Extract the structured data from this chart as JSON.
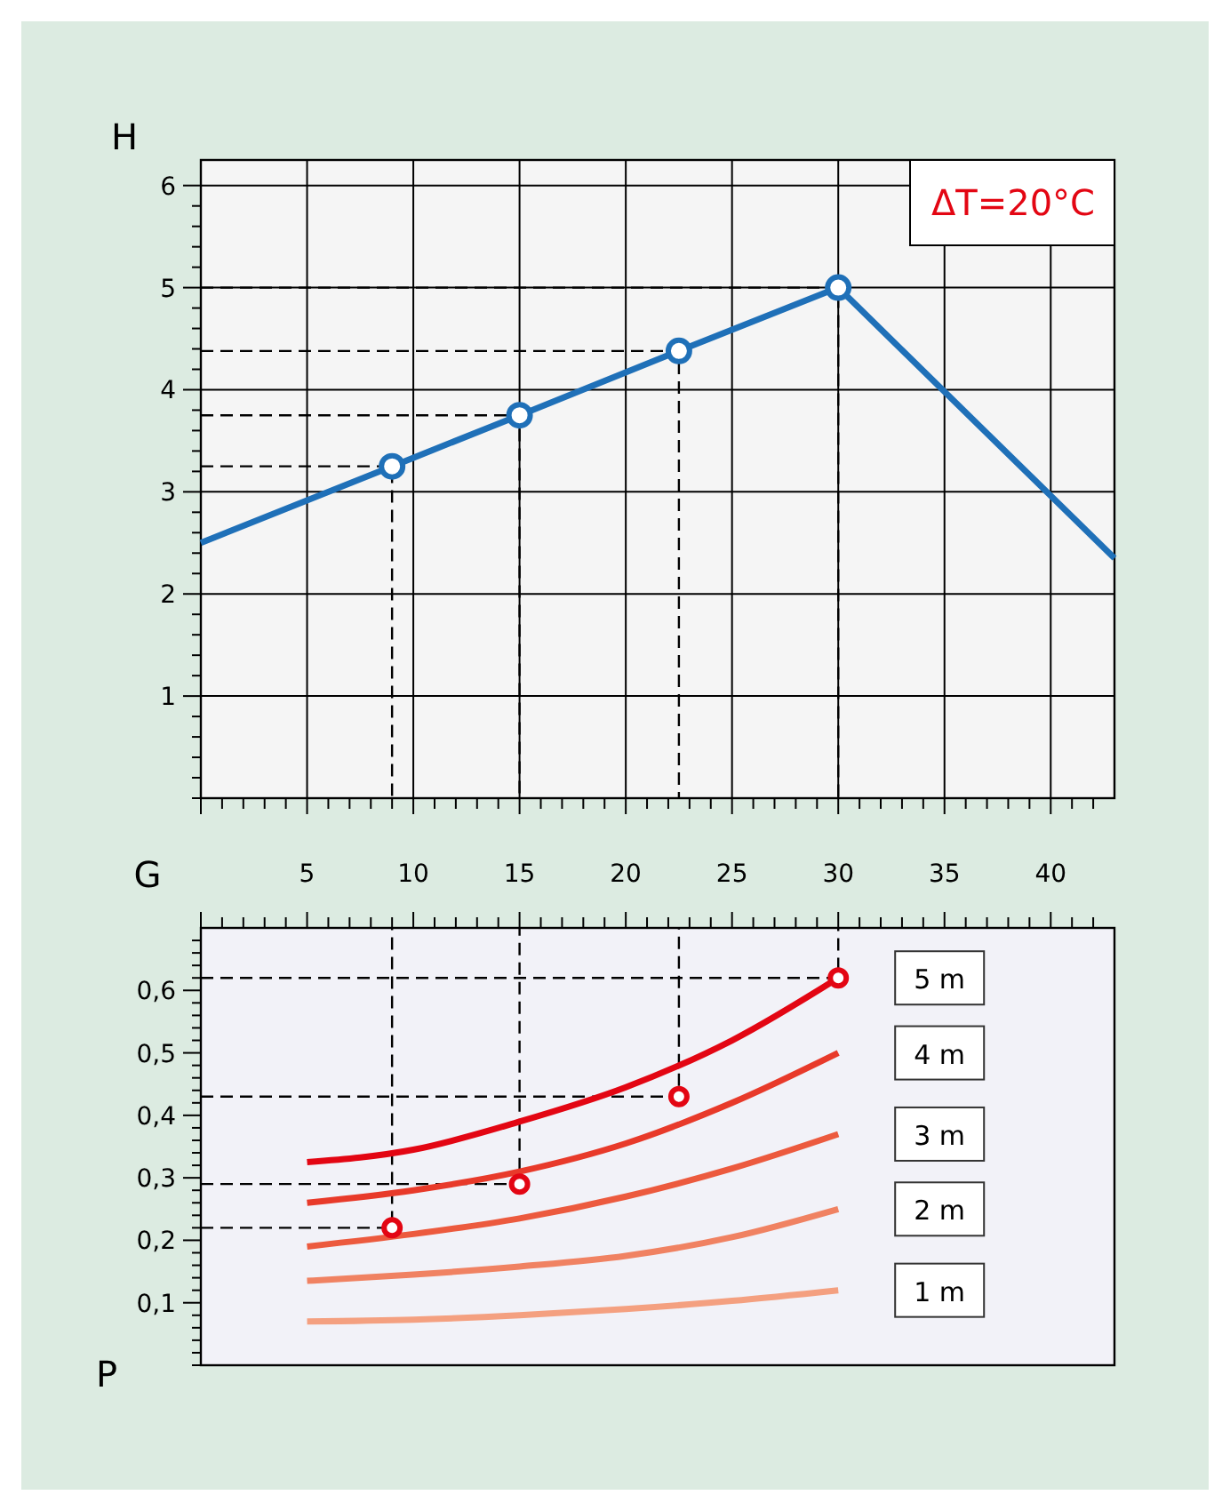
{
  "chart_data": [
    {
      "type": "line",
      "xlabel": "G",
      "ylabel": "H",
      "annotations": [
        "ΔT=20°C"
      ],
      "xlim": [
        0,
        43
      ],
      "ylim": [
        0,
        6.25
      ],
      "grid": true,
      "xticks": [
        {
          "value": 0,
          "label": null
        },
        {
          "value": 1,
          "label": null
        },
        {
          "value": 2,
          "label": null
        },
        {
          "value": 3,
          "label": null
        },
        {
          "value": 4,
          "label": null
        },
        5,
        {
          "value": 6,
          "label": null
        },
        {
          "value": 7,
          "label": null
        },
        {
          "value": 8,
          "label": null
        },
        {
          "value": 9,
          "label": null
        },
        10,
        {
          "value": 11,
          "label": null
        },
        {
          "value": 12,
          "label": null
        },
        {
          "value": 13,
          "label": null
        },
        {
          "value": 14,
          "label": null
        },
        15,
        {
          "value": 16,
          "label": null
        },
        {
          "value": 17,
          "label": null
        },
        {
          "value": 18,
          "label": null
        },
        {
          "value": 19,
          "label": null
        },
        20,
        {
          "value": 21,
          "label": null
        },
        {
          "value": 22,
          "label": null
        },
        {
          "value": 23,
          "label": null
        },
        {
          "value": 24,
          "label": null
        },
        25,
        {
          "value": 26,
          "label": null
        },
        {
          "value": 27,
          "label": null
        },
        {
          "value": 28,
          "label": null
        },
        {
          "value": 29,
          "label": null
        },
        30,
        {
          "value": 31,
          "label": null
        },
        {
          "value": 32,
          "label": null
        },
        {
          "value": 33,
          "label": null
        },
        {
          "value": 34,
          "label": null
        },
        35,
        {
          "value": 36,
          "label": null
        },
        {
          "value": 37,
          "label": null
        },
        {
          "value": 38,
          "label": null
        },
        {
          "value": 39,
          "label": null
        },
        40,
        {
          "value": 41,
          "label": null
        },
        {
          "value": 42,
          "label": null
        }
      ],
      "yticks": [
        {
          "value": 0,
          "label": null
        },
        {
          "value": 0.2,
          "label": null
        },
        {
          "value": 0.4,
          "label": null
        },
        {
          "value": 0.6,
          "label": null
        },
        {
          "value": 0.8,
          "label": null
        },
        1,
        {
          "value": 1.2,
          "label": null
        },
        {
          "value": 1.4,
          "label": null
        },
        {
          "value": 1.6,
          "label": null
        },
        {
          "value": 1.8,
          "label": null
        },
        2,
        {
          "value": 2.2,
          "label": null
        },
        {
          "value": 2.4,
          "label": null
        },
        {
          "value": 2.6,
          "label": null
        },
        {
          "value": 2.8,
          "label": null
        },
        3,
        {
          "value": 3.2,
          "label": null
        },
        {
          "value": 3.4,
          "label": null
        },
        {
          "value": 3.6,
          "label": null
        },
        {
          "value": 3.8,
          "label": null
        },
        4,
        {
          "value": 4.2,
          "label": null
        },
        {
          "value": 4.4,
          "label": null
        },
        {
          "value": 4.6,
          "label": null
        },
        {
          "value": 4.8,
          "label": null
        },
        5,
        {
          "value": 5.2,
          "label": null
        },
        {
          "value": 5.4,
          "label": null
        },
        {
          "value": 5.6,
          "label": null
        },
        {
          "value": 5.8,
          "label": null
        },
        6
      ],
      "series": [
        {
          "type": "line",
          "color": "#000000",
          "line_style": "dashed",
          "x": [
            0,
            9,
            9
          ],
          "values": [
            3.25,
            3.25,
            0
          ]
        },
        {
          "type": "line",
          "color": "#000000",
          "line_style": "dashed",
          "x": [
            0,
            15,
            15
          ],
          "values": [
            3.75,
            3.75,
            0
          ]
        },
        {
          "type": "line",
          "color": "#000000",
          "line_style": "dashed",
          "x": [
            0,
            22.5,
            22.5
          ],
          "values": [
            4.38,
            4.38,
            0
          ]
        },
        {
          "type": "line",
          "color": "#000000",
          "line_style": "dashed",
          "x": [
            0,
            30,
            30
          ],
          "values": [
            5.0,
            5.0,
            0
          ]
        },
        {
          "type": "line",
          "color": "#1f70b8",
          "x": [
            0,
            9,
            15,
            22.5,
            30,
            43
          ],
          "values": [
            2.5,
            3.25,
            3.75,
            4.38,
            5.0,
            2.35
          ]
        },
        {
          "type": "scatter",
          "color": "#1f70b8",
          "marker": "circle",
          "x": [
            9,
            15,
            22.5,
            30
          ],
          "values": [
            3.25,
            3.75,
            4.38,
            5.0
          ]
        }
      ]
    },
    {
      "type": "line",
      "ylabel": "P",
      "xlim": [
        0,
        43
      ],
      "ylim": [
        0,
        0.7
      ],
      "grid": "x",
      "tick_labels": "y",
      "xticks": [
        {
          "value": 0,
          "label": null
        },
        {
          "value": 1,
          "label": null
        },
        {
          "value": 2,
          "label": null
        },
        {
          "value": 3,
          "label": null
        },
        {
          "value": 4,
          "label": null
        },
        {
          "value": 5,
          "label": null
        },
        {
          "value": 6,
          "label": null
        },
        {
          "value": 7,
          "label": null
        },
        {
          "value": 8,
          "label": null
        },
        {
          "value": 9,
          "label": null
        },
        {
          "value": 10,
          "label": null
        },
        {
          "value": 11,
          "label": null
        },
        {
          "value": 12,
          "label": null
        },
        {
          "value": 13,
          "label": null
        },
        {
          "value": 14,
          "label": null
        },
        {
          "value": 15,
          "label": null
        },
        {
          "value": 16,
          "label": null
        },
        {
          "value": 17,
          "label": null
        },
        {
          "value": 18,
          "label": null
        },
        {
          "value": 19,
          "label": null
        },
        {
          "value": 20,
          "label": null
        },
        {
          "value": 21,
          "label": null
        },
        {
          "value": 22,
          "label": null
        },
        {
          "value": 23,
          "label": null
        },
        {
          "value": 24,
          "label": null
        },
        {
          "value": 25,
          "label": null
        },
        {
          "value": 26,
          "label": null
        },
        {
          "value": 27,
          "label": null
        },
        {
          "value": 28,
          "label": null
        },
        {
          "value": 29,
          "label": null
        },
        {
          "value": 30,
          "label": null
        },
        {
          "value": 31,
          "label": null
        },
        {
          "value": 32,
          "label": null
        },
        {
          "value": 33,
          "label": null
        },
        {
          "value": 34,
          "label": null
        },
        {
          "value": 35,
          "label": null
        },
        {
          "value": 36,
          "label": null
        },
        {
          "value": 37,
          "label": null
        },
        {
          "value": 38,
          "label": null
        },
        {
          "value": 39,
          "label": null
        },
        {
          "value": 40,
          "label": null
        },
        {
          "value": 41,
          "label": null
        },
        {
          "value": 42,
          "label": null
        }
      ],
      "yticks": [
        {
          "value": 0,
          "label": null
        },
        {
          "value": 0.02,
          "label": null
        },
        {
          "value": 0.04,
          "label": null
        },
        {
          "value": 0.06,
          "label": null
        },
        {
          "value": 0.08,
          "label": null
        },
        {
          "value": 0.1,
          "label": "0,1"
        },
        {
          "value": 0.12,
          "label": null
        },
        {
          "value": 0.14,
          "label": null
        },
        {
          "value": 0.16,
          "label": null
        },
        {
          "value": 0.18,
          "label": null
        },
        {
          "value": 0.2,
          "label": "0,2"
        },
        {
          "value": 0.22,
          "label": null
        },
        {
          "value": 0.24,
          "label": null
        },
        {
          "value": 0.26,
          "label": null
        },
        {
          "value": 0.28,
          "label": null
        },
        {
          "value": 0.3,
          "label": "0,3"
        },
        {
          "value": 0.32,
          "label": null
        },
        {
          "value": 0.34,
          "label": null
        },
        {
          "value": 0.36,
          "label": null
        },
        {
          "value": 0.38,
          "label": null
        },
        {
          "value": 0.4,
          "label": "0,4"
        },
        {
          "value": 0.42,
          "label": null
        },
        {
          "value": 0.44,
          "label": null
        },
        {
          "value": 0.46,
          "label": null
        },
        {
          "value": 0.48,
          "label": null
        },
        {
          "value": 0.5,
          "label": "0,5"
        },
        {
          "value": 0.52,
          "label": null
        },
        {
          "value": 0.54,
          "label": null
        },
        {
          "value": 0.56,
          "label": null
        },
        {
          "value": 0.58,
          "label": null
        },
        {
          "value": 0.6,
          "label": "0,6"
        },
        {
          "value": 0.62,
          "label": null
        },
        {
          "value": 0.64,
          "label": null
        },
        {
          "value": 0.66,
          "label": null
        },
        {
          "value": 0.68,
          "label": null
        }
      ],
      "series": [
        {
          "type": "line",
          "color": "#000000",
          "line_style": "dashed",
          "x": [
            0,
            9,
            9
          ],
          "values": [
            0.22,
            0.22,
            0.7
          ]
        },
        {
          "type": "line",
          "color": "#000000",
          "line_style": "dashed",
          "x": [
            0,
            15,
            15
          ],
          "values": [
            0.29,
            0.29,
            0.7
          ]
        },
        {
          "type": "line",
          "color": "#000000",
          "line_style": "dashed",
          "x": [
            0,
            22.5,
            22.5
          ],
          "values": [
            0.43,
            0.43,
            0.7
          ]
        },
        {
          "type": "line",
          "color": "#000000",
          "line_style": "dashed",
          "x": [
            0,
            30,
            30
          ],
          "values": [
            0.62,
            0.62,
            0.7
          ]
        },
        {
          "type": "line",
          "name": "5 m",
          "color": "#e30613",
          "x": [
            5,
            10,
            15,
            20,
            25,
            30
          ],
          "values": [
            0.325,
            0.345,
            0.39,
            0.445,
            0.52,
            0.62
          ]
        },
        {
          "type": "line",
          "name": "4 m",
          "color": "#e83a2a",
          "x": [
            5,
            10,
            15,
            20,
            25,
            30
          ],
          "values": [
            0.26,
            0.28,
            0.31,
            0.355,
            0.42,
            0.5
          ]
        },
        {
          "type": "line",
          "name": "3 m",
          "color": "#ec5a3e",
          "x": [
            5,
            10,
            15,
            20,
            25,
            30
          ],
          "values": [
            0.19,
            0.21,
            0.235,
            0.27,
            0.315,
            0.37
          ]
        },
        {
          "type": "line",
          "name": "2 m",
          "color": "#f08262",
          "x": [
            5,
            10,
            15,
            20,
            25,
            30
          ],
          "values": [
            0.135,
            0.145,
            0.158,
            0.175,
            0.205,
            0.25
          ]
        },
        {
          "type": "line",
          "name": "1 m",
          "color": "#f4a080",
          "x": [
            5,
            10,
            15,
            20,
            25,
            30
          ],
          "values": [
            0.07,
            0.073,
            0.08,
            0.09,
            0.103,
            0.12
          ]
        },
        {
          "type": "scatter",
          "color": "#e30613",
          "marker": "circle",
          "x": [
            9,
            15,
            22.5,
            30
          ],
          "values": [
            0.22,
            0.29,
            0.43,
            0.62
          ]
        }
      ]
    }
  ]
}
